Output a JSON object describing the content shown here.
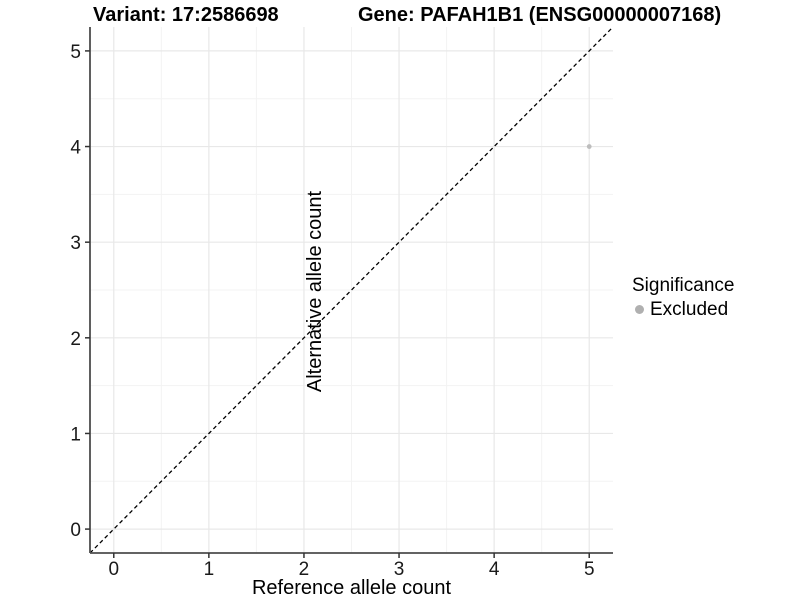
{
  "titles": {
    "variant": "Variant: 17:2586698",
    "gene": "Gene: PAFAH1B1 (ENSG00000007168)"
  },
  "chart_data": {
    "type": "scatter",
    "title_left": "Variant: 17:2586698",
    "title_right": "Gene: PAFAH1B1 (ENSG00000007168)",
    "xlabel": "Reference allele count",
    "ylabel": "Alternative allele count",
    "xlim": [
      -0.25,
      5.25
    ],
    "ylim": [
      -0.25,
      5.25
    ],
    "x_ticks": [
      0,
      1,
      2,
      3,
      4,
      5
    ],
    "y_ticks": [
      0,
      1,
      2,
      3,
      4,
      5
    ],
    "x_minor_ticks": [
      0.5,
      1.5,
      2.5,
      3.5,
      4.5
    ],
    "y_minor_ticks": [
      0.5,
      1.5,
      2.5,
      3.5,
      4.5
    ],
    "grid": true,
    "points": [
      {
        "x": 5,
        "y": 4,
        "series": "Excluded"
      }
    ],
    "reference_line": {
      "slope": 1,
      "intercept": 0,
      "style": "dashed",
      "color": "#000000"
    },
    "legend": {
      "title": "Significance",
      "position": "right",
      "entries": [
        {
          "label": "Excluded",
          "color": "#b0b0b0"
        }
      ]
    },
    "colors": {
      "point": "#bdbdbd",
      "axis_line": "#4d4d4d",
      "tick_mark": "#333333",
      "tick_label": "#1a1a1a",
      "grid_major": "#e8e8e8",
      "grid_minor": "#f3f3f3",
      "background": "#ffffff"
    }
  }
}
